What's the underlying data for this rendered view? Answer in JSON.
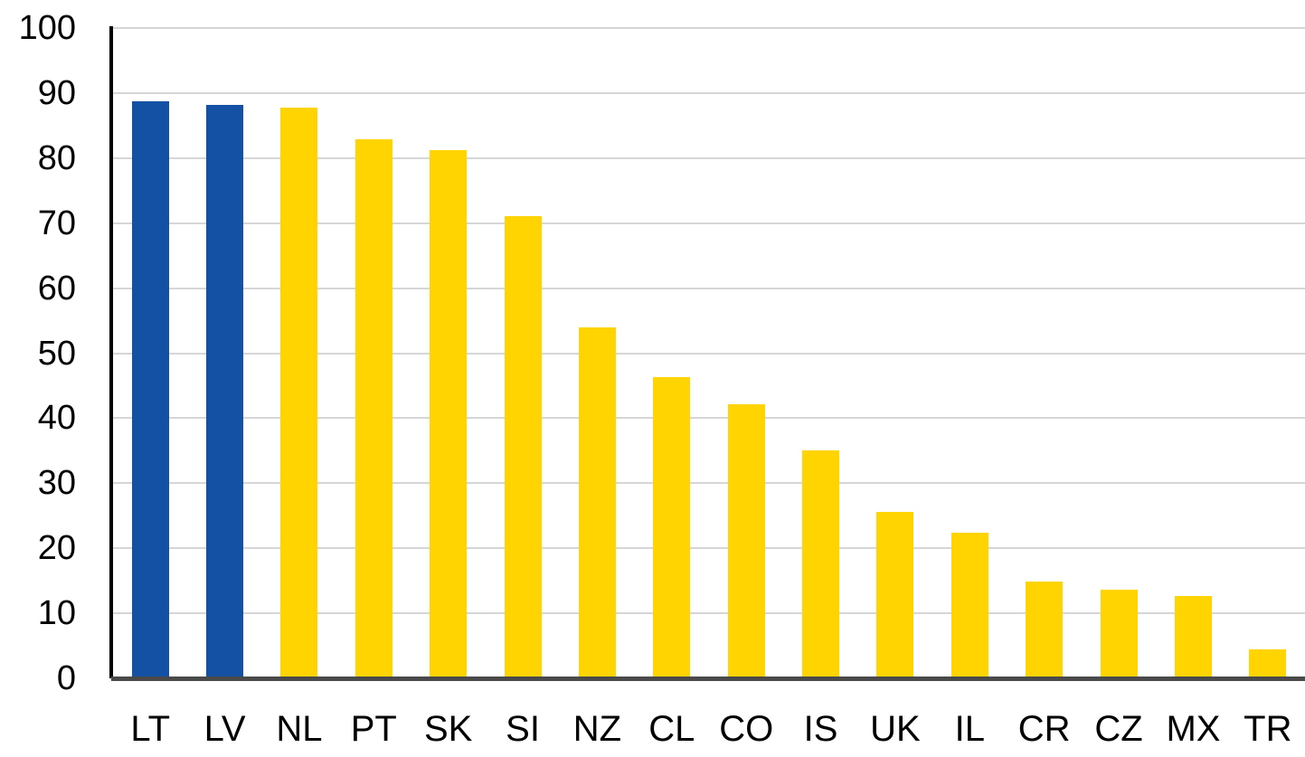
{
  "chart_data": {
    "type": "bar",
    "categories": [
      "LT",
      "LV",
      "NL",
      "PT",
      "SK",
      "SI",
      "NZ",
      "CL",
      "CO",
      "IS",
      "UK",
      "IL",
      "CR",
      "CZ",
      "MX",
      "TR"
    ],
    "values": [
      88.8,
      88.2,
      87.8,
      82.9,
      81.2,
      71.1,
      53.9,
      46.3,
      42.2,
      35.1,
      25.6,
      22.4,
      14.9,
      13.6,
      12.6,
      4.4
    ],
    "highlighted_categories": [
      "LT",
      "LV"
    ],
    "title": "",
    "xlabel": "",
    "ylabel": "",
    "ylim": [
      0,
      100
    ],
    "yticks": [
      0,
      10,
      20,
      30,
      40,
      50,
      60,
      70,
      80,
      90,
      100
    ],
    "grid": "horizontal",
    "legend": "none",
    "colors": {
      "bar_default": "#FFD400",
      "bar_highlight": "#1451A4",
      "gridline": "#D6D6D6",
      "y_axis_line": "#000000",
      "x_axis_line": "#4A4A4A",
      "tick_label": "#000000",
      "background": "#FFFFFF"
    }
  }
}
